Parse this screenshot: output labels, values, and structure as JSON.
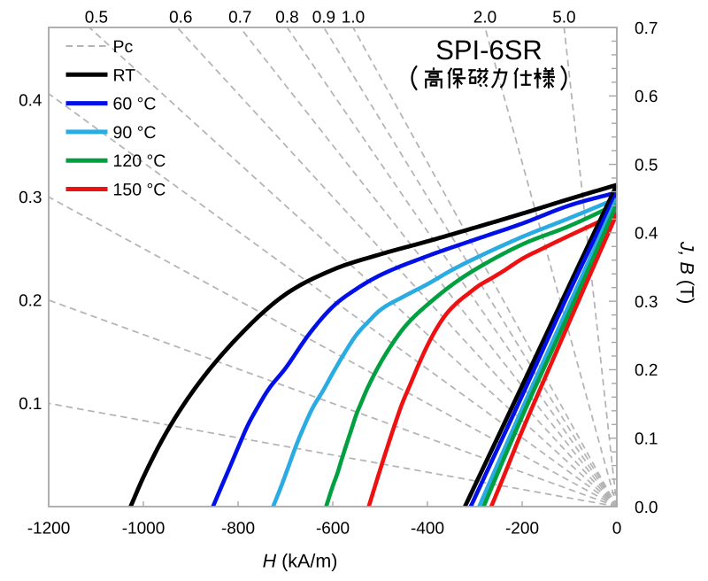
{
  "title": {
    "line1": "SPI-6SR",
    "line2": "（高保磁力仕様）"
  },
  "legend": {
    "items": [
      {
        "label": "Pc",
        "color": "#b4b4b4",
        "style": "dashed"
      },
      {
        "label": "RT",
        "color": "#000000",
        "style": "solid"
      },
      {
        "label": "60 °C",
        "color": "#0010e6",
        "style": "solid"
      },
      {
        "label": "90 °C",
        "color": "#2aabe2",
        "style": "solid"
      },
      {
        "label": "120 °C",
        "color": "#00a040",
        "style": "solid"
      },
      {
        "label": "150 °C",
        "color": "#ee1111",
        "style": "solid"
      }
    ]
  },
  "axes": {
    "x": {
      "title": "H (kA/m)",
      "title_italic": "H",
      "title_rest": " (kA/m)",
      "min": -1200,
      "max": 0,
      "tick_labels": [
        "-1200",
        "-1000",
        "-800",
        "-600",
        "-400",
        "-200",
        "0"
      ],
      "tick_values": [
        -1200,
        -1000,
        -800,
        -600,
        -400,
        -200,
        0
      ]
    },
    "y_right": {
      "title": "J, B (T)",
      "title_italic": "J, B",
      "title_rest": " (T)",
      "min": 0.0,
      "max": 0.7,
      "tick_labels": [
        "0.0",
        "0.1",
        "0.2",
        "0.3",
        "0.4",
        "0.5",
        "0.6",
        "0.7"
      ],
      "tick_values": [
        0.0,
        0.1,
        0.2,
        0.3,
        0.4,
        0.5,
        0.6,
        0.7
      ],
      "minor_tick_step": 0.02
    }
  },
  "pc": {
    "legend_label": "Pc",
    "values": [
      0.1,
      0.2,
      0.3,
      0.4,
      0.5,
      0.6,
      0.7,
      0.8,
      0.9,
      1.0,
      2.0,
      5.0
    ],
    "top_labels": [
      "0.5",
      "0.6",
      "0.7",
      "0.8",
      "0.9",
      "1.0",
      "2.0",
      "5.0"
    ],
    "left_labels": [
      "0.4",
      "0.3",
      "0.2",
      "0.1"
    ],
    "line_color": "#b4b4b4"
  },
  "chart_data": {
    "type": "line",
    "title": "SPI-6SR（高保磁力仕様）",
    "xlabel": "H (kA/m)",
    "ylabel": "J, B (T)",
    "xlim": [
      -1200,
      0
    ],
    "ylim": [
      0,
      0.7
    ],
    "grid": false,
    "legend_position": "top-left-inside",
    "mu0_T_per_kAm": 0.00125664,
    "pc_load_lines": {
      "description": "Dashed permeance-coefficient load lines radiating from the origin (H=0, B=0); B = Pc * mu0 * |H|",
      "values": [
        0.1,
        0.2,
        0.3,
        0.4,
        0.5,
        0.6,
        0.7,
        0.8,
        0.9,
        1.0,
        2.0,
        5.0
      ]
    },
    "b_curve_rule": "Each temperature also shows its normal induction curve B(H) = J(H) + mu0*H, plotted where B >= 0",
    "series": [
      {
        "name": "RT",
        "color": "#000000",
        "Br_T": 0.47,
        "HcJ_kAm": 1027,
        "HcB_kAm": 321,
        "j_curve": [
          [
            -1027,
            0
          ],
          [
            -1000,
            0.043
          ],
          [
            -950,
            0.11
          ],
          [
            -880,
            0.183
          ],
          [
            -780,
            0.262
          ],
          [
            -700,
            0.31
          ],
          [
            -600,
            0.346
          ],
          [
            -500,
            0.3685
          ],
          [
            -400,
            0.3875
          ],
          [
            -300,
            0.4075
          ],
          [
            -200,
            0.428
          ],
          [
            -100,
            0.4495
          ],
          [
            0,
            0.47
          ]
        ]
      },
      {
        "name": "60 °C",
        "color": "#0010e6",
        "Br_T": 0.459,
        "HcJ_kAm": 853,
        "HcB_kAm": 308,
        "j_curve": [
          [
            -853,
            0
          ],
          [
            -834,
            0.031
          ],
          [
            -816,
            0.06
          ],
          [
            -798,
            0.0895
          ],
          [
            -780,
            0.118
          ],
          [
            -760,
            0.1435
          ],
          [
            -735,
            0.172
          ],
          [
            -700,
            0.202
          ],
          [
            -650,
            0.252
          ],
          [
            -600,
            0.292
          ],
          [
            -550,
            0.318
          ],
          [
            -500,
            0.338
          ],
          [
            -400,
            0.366
          ],
          [
            -300,
            0.39
          ],
          [
            -200,
            0.4135
          ],
          [
            -100,
            0.44
          ],
          [
            0,
            0.459
          ]
        ]
      },
      {
        "name": "90 °C",
        "color": "#2aabe2",
        "Br_T": 0.45,
        "HcJ_kAm": 726,
        "HcB_kAm": 292,
        "j_curve": [
          [
            -726,
            0
          ],
          [
            -709,
            0.0295
          ],
          [
            -693,
            0.0595
          ],
          [
            -678,
            0.088
          ],
          [
            -661,
            0.1165
          ],
          [
            -643,
            0.1435
          ],
          [
            -620,
            0.17
          ],
          [
            -600,
            0.195
          ],
          [
            -575,
            0.2245
          ],
          [
            -550,
            0.251
          ],
          [
            -525,
            0.27
          ],
          [
            -500,
            0.287
          ],
          [
            -450,
            0.307
          ],
          [
            -400,
            0.325
          ],
          [
            -350,
            0.345
          ],
          [
            -300,
            0.3625
          ],
          [
            -200,
            0.394
          ],
          [
            -100,
            0.4215
          ],
          [
            0,
            0.45
          ]
        ]
      },
      {
        "name": "120 °C",
        "color": "#00a040",
        "Br_T": 0.442,
        "HcJ_kAm": 614,
        "HcB_kAm": 282,
        "j_curve": [
          [
            -614,
            0
          ],
          [
            -600,
            0.03
          ],
          [
            -590,
            0.049
          ],
          [
            -580,
            0.0715
          ],
          [
            -570,
            0.093
          ],
          [
            -560,
            0.114
          ],
          [
            -550,
            0.135
          ],
          [
            -540,
            0.1515
          ],
          [
            -530,
            0.168
          ],
          [
            -515,
            0.1895
          ],
          [
            -500,
            0.209
          ],
          [
            -475,
            0.237
          ],
          [
            -450,
            0.261
          ],
          [
            -425,
            0.2795
          ],
          [
            -400,
            0.295
          ],
          [
            -350,
            0.323
          ],
          [
            -300,
            0.346
          ],
          [
            -200,
            0.383
          ],
          [
            -100,
            0.41
          ],
          [
            0,
            0.442
          ]
        ]
      },
      {
        "name": "150 °C",
        "color": "#ee1111",
        "Br_T": 0.428,
        "HcJ_kAm": 524,
        "HcB_kAm": 265,
        "j_curve": [
          [
            -524,
            0
          ],
          [
            -508,
            0.036
          ],
          [
            -490,
            0.0755
          ],
          [
            -472,
            0.1135
          ],
          [
            -454,
            0.1495
          ],
          [
            -436,
            0.179
          ],
          [
            -418,
            0.2085
          ],
          [
            -400,
            0.2355
          ],
          [
            -380,
            0.261
          ],
          [
            -360,
            0.2815
          ],
          [
            -338,
            0.2975
          ],
          [
            -315,
            0.3105
          ],
          [
            -290,
            0.3235
          ],
          [
            -265,
            0.3335
          ],
          [
            -240,
            0.344
          ],
          [
            -200,
            0.362
          ],
          [
            -160,
            0.376
          ],
          [
            -100,
            0.396
          ],
          [
            0,
            0.428
          ]
        ]
      }
    ]
  },
  "colors": {
    "background": "#ffffff",
    "frame": "#a8a8a8",
    "tick": "#a8a8a8",
    "pc_line": "#b0b0b0",
    "text": "#000000"
  }
}
